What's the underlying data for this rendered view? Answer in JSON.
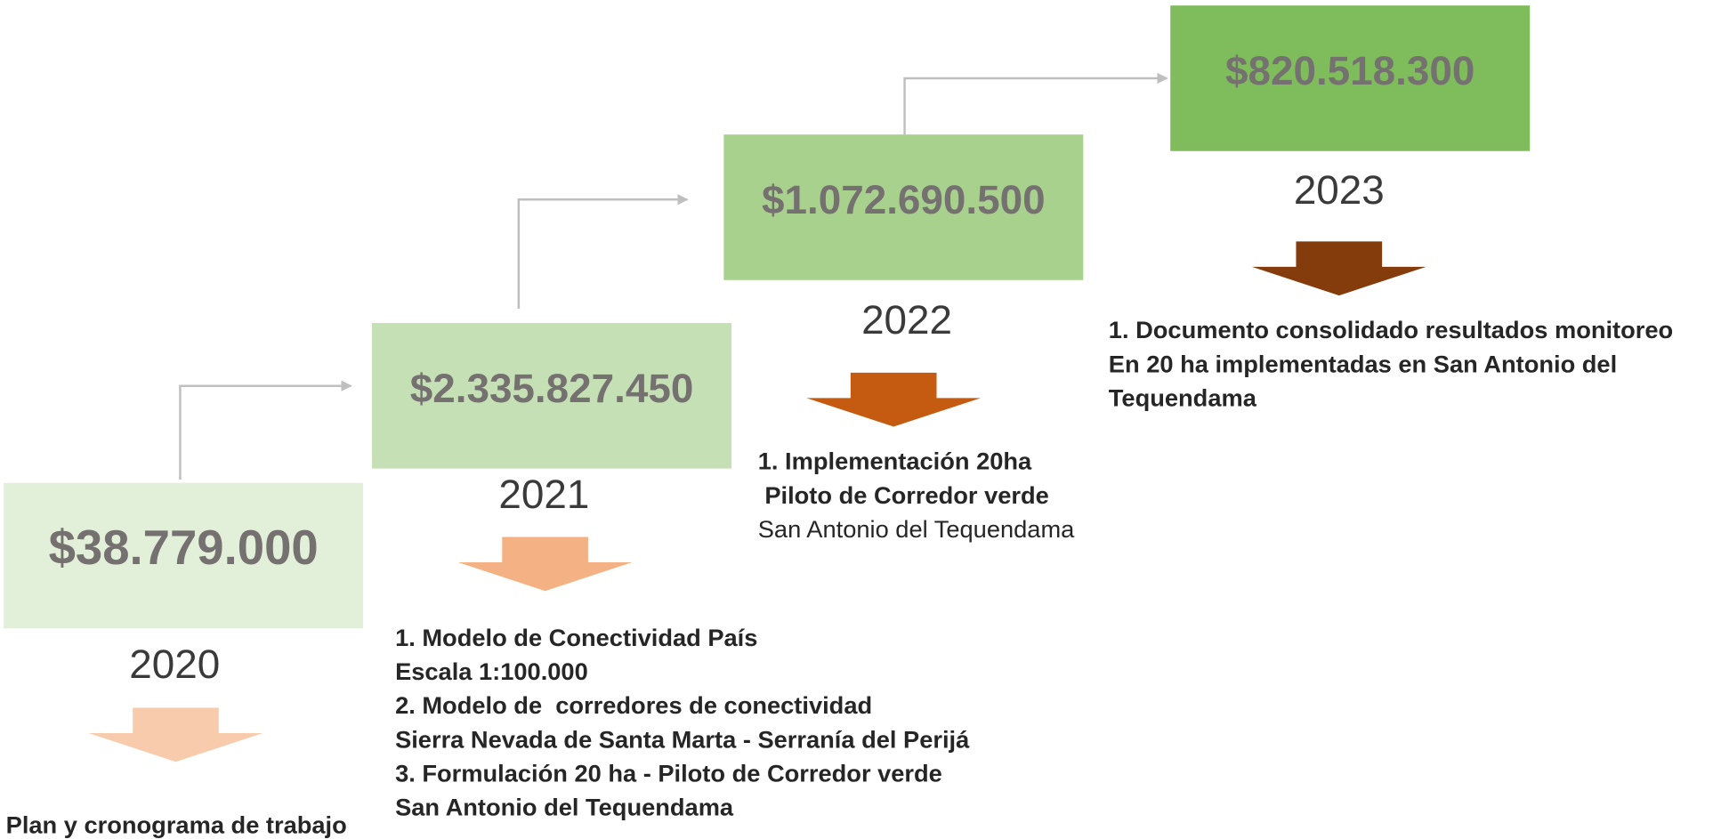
{
  "steps": [
    {
      "amount": "$38.779.000",
      "year": "2020",
      "description": [
        "Plan y cronograma de trabajo"
      ]
    },
    {
      "amount": "$2.335.827.450",
      "year": "2021",
      "description": [
        "1. Modelo de Conectividad País",
        "Escala 1:100.000",
        "2. Modelo de  corredores de conectividad",
        "Sierra Nevada de Santa Marta - Serranía del Perijá",
        "3. Formulación 20 ha - Piloto de Corredor verde",
        "San Antonio del Tequendama"
      ]
    },
    {
      "amount": "$1.072.690.500",
      "year": "2022",
      "description": [
        "1. Implementación 20ha",
        " Piloto de Corredor verde",
        "San Antonio del Tequendama"
      ]
    },
    {
      "amount": "$820.518.300",
      "year": "2023",
      "description": [
        "1. Documento consolidado resultados monitoreo",
        "En 20 ha implementadas en San Antonio del",
        "Tequendama"
      ]
    }
  ]
}
